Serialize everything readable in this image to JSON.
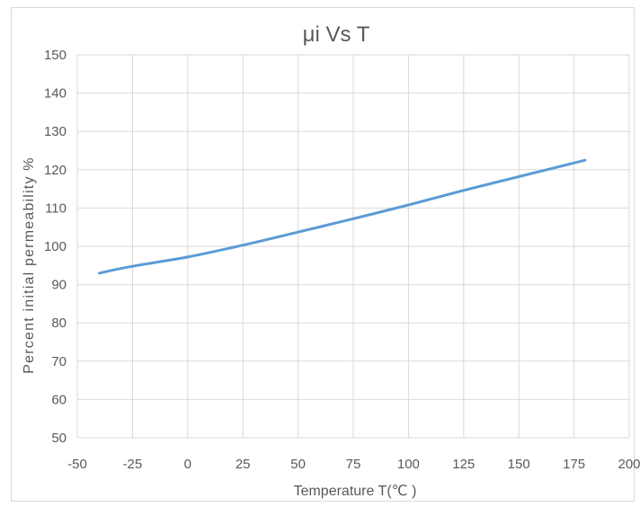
{
  "chart_data": {
    "type": "line",
    "title": "μi Vs T",
    "xlabel": "Temperature T(℃ )",
    "ylabel": "Percent initial permeability %",
    "xlim": [
      -50,
      200
    ],
    "ylim": [
      50,
      150
    ],
    "x_ticks": [
      -50,
      -25,
      0,
      25,
      50,
      75,
      100,
      125,
      150,
      175,
      200
    ],
    "y_ticks": [
      50,
      60,
      70,
      80,
      90,
      100,
      110,
      120,
      130,
      140,
      150
    ],
    "grid": true,
    "series": [
      {
        "color": "#5b9bd5",
        "x": [
          -40,
          -25,
          0,
          25,
          50,
          75,
          100,
          125,
          150,
          180
        ],
        "y": [
          93,
          94.8,
          97.2,
          100.3,
          103.7,
          107.2,
          110.8,
          114.6,
          118.2,
          122.5
        ]
      }
    ]
  }
}
